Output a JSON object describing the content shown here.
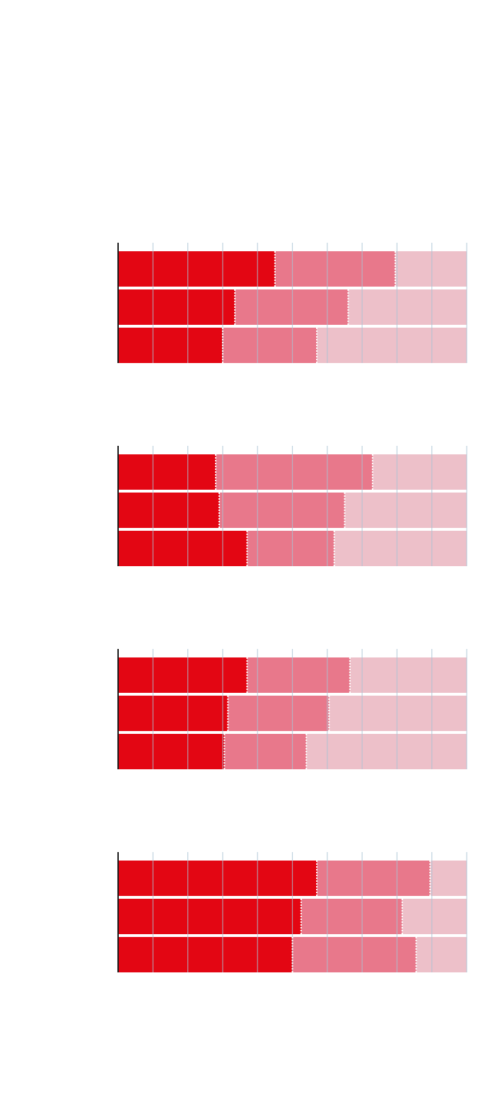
{
  "colors": {
    "dark": "#e30613",
    "mid": "#e8788b",
    "light": "#edc0c9",
    "grid": "#a9c3d4",
    "axis": "#1a1a1a",
    "boundary": "#ffffff"
  },
  "chart_data": [
    {
      "type": "bar",
      "orientation": "horizontal",
      "stacked": true,
      "xlim": [
        0,
        100
      ],
      "grid": true,
      "rows": [
        {
          "values": [
            45,
            34.5,
            20.5
          ]
        },
        {
          "values": [
            33.5,
            32.5,
            34
          ]
        },
        {
          "values": [
            30,
            27,
            43
          ]
        }
      ]
    },
    {
      "type": "bar",
      "orientation": "horizontal",
      "stacked": true,
      "xlim": [
        0,
        100
      ],
      "grid": true,
      "rows": [
        {
          "values": [
            28,
            45,
            27
          ]
        },
        {
          "values": [
            29,
            36,
            35
          ]
        },
        {
          "values": [
            37,
            25,
            38
          ]
        }
      ]
    },
    {
      "type": "bar",
      "orientation": "horizontal",
      "stacked": true,
      "xlim": [
        0,
        100
      ],
      "grid": true,
      "rows": [
        {
          "values": [
            37,
            29.5,
            33.5
          ]
        },
        {
          "values": [
            31.5,
            29,
            39.5
          ]
        },
        {
          "values": [
            30.5,
            23.5,
            46
          ]
        }
      ]
    },
    {
      "type": "bar",
      "orientation": "horizontal",
      "stacked": true,
      "xlim": [
        0,
        100
      ],
      "grid": true,
      "rows": [
        {
          "values": [
            57,
            32.5,
            10.5
          ]
        },
        {
          "values": [
            52.5,
            29,
            18.5
          ]
        },
        {
          "values": [
            50,
            35.5,
            14.5
          ]
        }
      ]
    }
  ]
}
